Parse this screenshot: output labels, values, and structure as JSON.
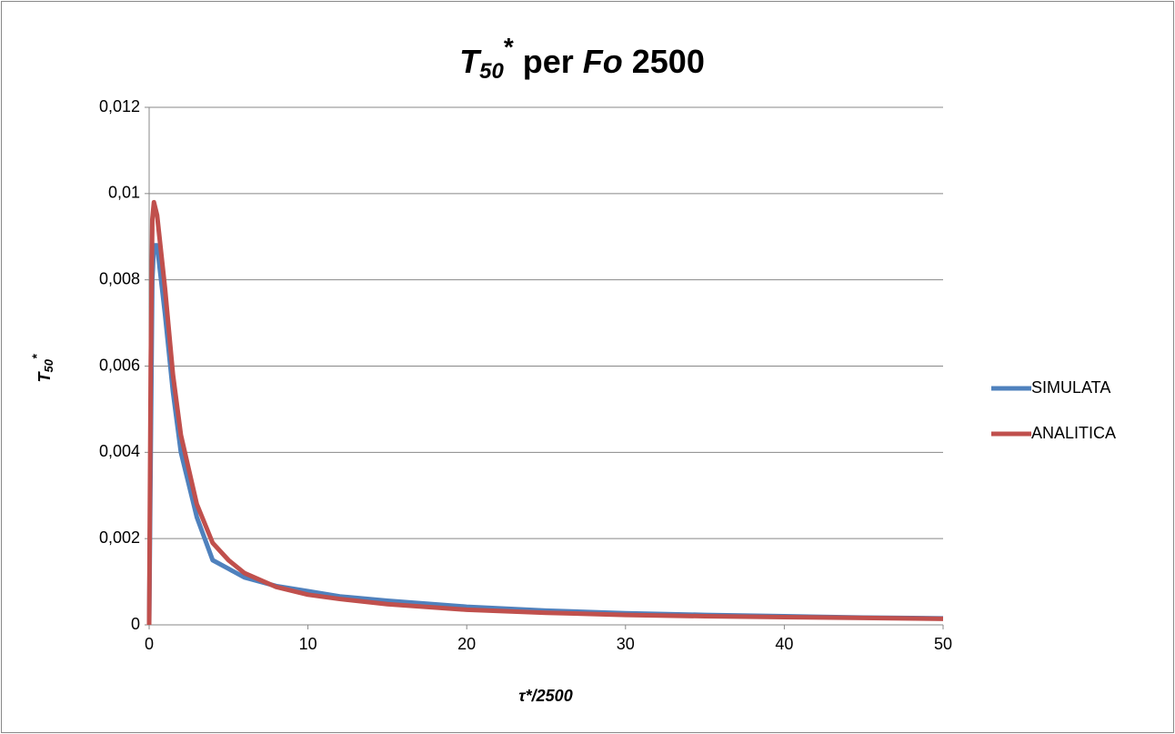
{
  "chart_data": {
    "type": "line",
    "title": [
      "T",
      "50",
      "*",
      " per ",
      "Fo",
      " 2500"
    ],
    "y_label": [
      "T",
      "50",
      "*"
    ],
    "x_label": "τ*/2500",
    "x": [
      0,
      0.1,
      0.2,
      0.3,
      0.5,
      1,
      1.5,
      2,
      3,
      4,
      5,
      6,
      8,
      10,
      12,
      15,
      20,
      25,
      30,
      35,
      40,
      45,
      50
    ],
    "series": [
      {
        "name": "SIMULATA",
        "color": "#4f81bd",
        "values": [
          0,
          0.004,
          0.008,
          0.0088,
          0.0088,
          0.0072,
          0.0054,
          0.004,
          0.0025,
          0.0015,
          0.0013,
          0.0011,
          0.0009,
          0.00078,
          0.00066,
          0.00056,
          0.00042,
          0.00033,
          0.00027,
          0.00023,
          0.0002,
          0.00017,
          0.00015
        ]
      },
      {
        "name": "ANALITICA",
        "color": "#c0504d",
        "values": [
          0,
          0.006,
          0.0094,
          0.0098,
          0.0095,
          0.0078,
          0.0058,
          0.0044,
          0.0028,
          0.0019,
          0.0015,
          0.0012,
          0.00088,
          0.0007,
          0.0006,
          0.00048,
          0.00035,
          0.00028,
          0.00023,
          0.0002,
          0.00018,
          0.00016,
          0.00014
        ]
      }
    ],
    "xlim": [
      0,
      50
    ],
    "xticks": [
      0,
      10,
      20,
      30,
      40,
      50
    ],
    "ylim": [
      0,
      0.012
    ],
    "yticks": [
      0,
      {
        "value": 0.002,
        "label": "0,002"
      },
      {
        "value": 0.004,
        "label": "0,004"
      },
      {
        "value": 0.006,
        "label": "0,006"
      },
      {
        "value": 0.008,
        "label": "0,008"
      },
      {
        "value": 0.01,
        "label": "0,01"
      },
      {
        "value": 0.012,
        "label": "0,012"
      }
    ],
    "grid": true,
    "legend": "right"
  }
}
